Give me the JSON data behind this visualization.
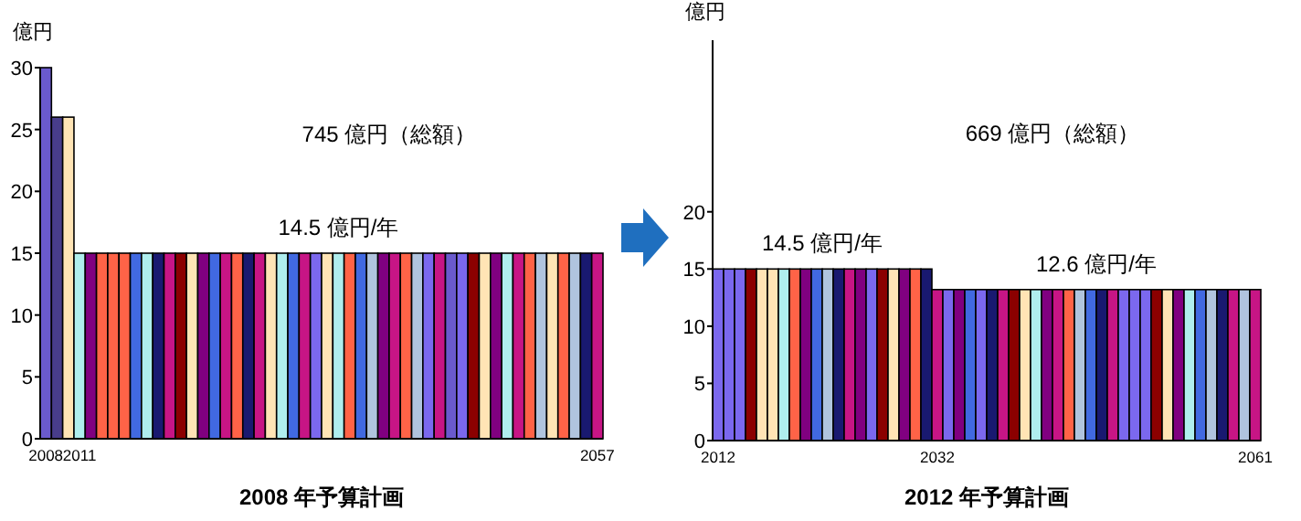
{
  "chart_data": [
    {
      "type": "bar",
      "title": "2008 年予算計画",
      "ylabel": "億円",
      "categories": [
        "2008",
        null,
        null,
        "2011",
        null,
        null,
        null,
        null,
        null,
        null,
        null,
        null,
        null,
        null,
        null,
        null,
        null,
        null,
        null,
        null,
        null,
        null,
        null,
        null,
        null,
        null,
        null,
        null,
        null,
        null,
        null,
        null,
        null,
        null,
        null,
        null,
        null,
        null,
        null,
        null,
        null,
        null,
        null,
        null,
        null,
        null,
        null,
        null,
        null,
        "2057"
      ],
      "values": [
        30,
        26,
        26,
        15,
        15,
        15,
        15,
        15,
        15,
        15,
        15,
        15,
        15,
        15,
        15,
        15,
        15,
        15,
        15,
        15,
        15,
        15,
        15,
        15,
        15,
        15,
        15,
        15,
        15,
        15,
        15,
        15,
        15,
        15,
        15,
        15,
        15,
        15,
        15,
        15,
        15,
        15,
        15,
        15,
        15,
        15,
        15,
        15,
        15,
        15
      ],
      "colors": [
        "#6a5acd",
        "#483d8b",
        "#ffe4b5",
        "#afeeee",
        "#800080",
        "#ff6347",
        "#ff6347",
        "#ff6347",
        "#4169e1",
        "#afeeee",
        "#191970",
        "#c71585",
        "#8b0000",
        "#ffe4b5",
        "#800080",
        "#4169e1",
        "#c71585",
        "#ff6347",
        "#191970",
        "#c71585",
        "#ffe4b5",
        "#afeeee",
        "#4169e1",
        "#c71585",
        "#7b68ee",
        "#ffe4b5",
        "#afeeee",
        "#ff6347",
        "#4169e1",
        "#b0c4de",
        "#800080",
        "#c71585",
        "#ff6347",
        "#b0c4de",
        "#7b68ee",
        "#c71585",
        "#6a5acd",
        "#7b68ee",
        "#8b0000",
        "#ffe4b5",
        "#800080",
        "#afeeee",
        "#c71585",
        "#ff6347",
        "#b0c4de",
        "#ffe4b5",
        "#ff6347",
        "#b0c4de",
        "#191970",
        "#c71585"
      ],
      "ylim": [
        0,
        30
      ],
      "yticks": [
        0,
        5,
        10,
        15,
        20,
        25,
        30
      ],
      "annotations": [
        "745 億円（総額）",
        "14.5 億円/年"
      ]
    },
    {
      "type": "bar",
      "title": "2012 年予算計画",
      "ylabel": "億円",
      "categories": [
        "2012",
        null,
        null,
        null,
        null,
        null,
        null,
        null,
        null,
        null,
        null,
        null,
        null,
        null,
        null,
        null,
        null,
        null,
        null,
        null,
        "2032",
        null,
        null,
        null,
        null,
        null,
        null,
        null,
        null,
        null,
        null,
        null,
        null,
        null,
        null,
        null,
        null,
        null,
        null,
        null,
        null,
        null,
        null,
        null,
        null,
        null,
        null,
        null,
        null,
        "2061"
      ],
      "values": [
        15,
        15,
        15,
        15,
        15,
        15,
        15,
        15,
        15,
        15,
        15,
        15,
        15,
        15,
        15,
        15,
        15,
        15,
        15,
        15,
        13.2,
        13.2,
        13.2,
        13.2,
        13.2,
        13.2,
        13.2,
        13.2,
        13.2,
        13.2,
        13.2,
        13.2,
        13.2,
        13.2,
        13.2,
        13.2,
        13.2,
        13.2,
        13.2,
        13.2,
        13.2,
        13.2,
        13.2,
        13.2,
        13.2,
        13.2,
        13.2,
        13.2,
        13.2,
        13.2
      ],
      "colors": [
        "#7b68ee",
        "#7b68ee",
        "#7b68ee",
        "#8b0000",
        "#ffe4b5",
        "#ffe4b5",
        "#afeeee",
        "#ff6347",
        "#800080",
        "#4169e1",
        "#b0c4de",
        "#191970",
        "#c71585",
        "#800080",
        "#7b68ee",
        "#8b0000",
        "#ffe4b5",
        "#800080",
        "#ff6347",
        "#191970",
        "#c71585",
        "#7b68ee",
        "#800080",
        "#4169e1",
        "#7b68ee",
        "#191970",
        "#c71585",
        "#8b0000",
        "#ffe4b5",
        "#afeeee",
        "#800080",
        "#c71585",
        "#ff6347",
        "#b0c4de",
        "#4169e1",
        "#191970",
        "#c71585",
        "#7b68ee",
        "#7b68ee",
        "#7b68ee",
        "#8b0000",
        "#ffe4b5",
        "#800080",
        "#afeeee",
        "#4169e1",
        "#b0c4de",
        "#191970",
        "#c71585",
        "#b0c4de",
        "#c71585"
      ],
      "ylim": [
        0,
        35
      ],
      "yticks": [
        0,
        5,
        10,
        15,
        20
      ],
      "annotations": [
        "669 億円（総額）",
        "14.5 億円/年",
        "12.6 億円/年"
      ]
    }
  ]
}
